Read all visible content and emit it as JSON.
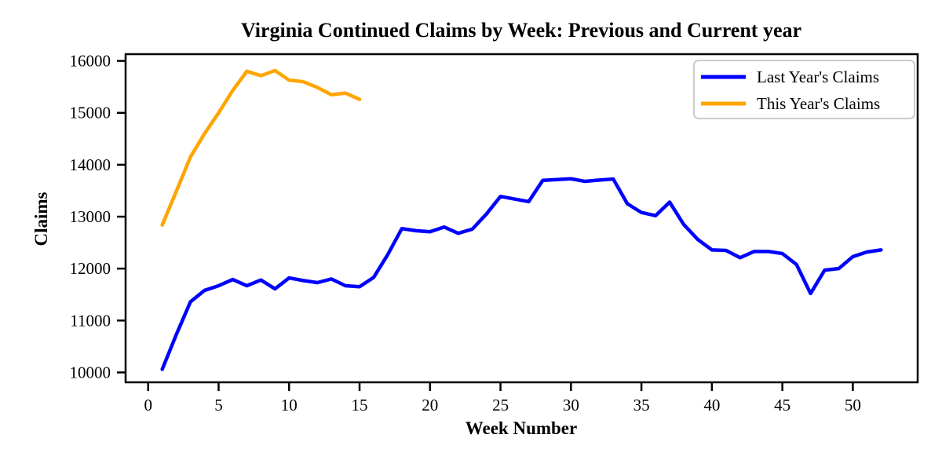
{
  "chart_data": {
    "type": "line",
    "title": "Virginia Continued Claims by Week: Previous and Current year",
    "xlabel": "Week Number",
    "ylabel": "Claims",
    "xlim": [
      -1.6,
      54.6
    ],
    "ylim": [
      9810,
      16130
    ],
    "xticks": [
      0,
      5,
      10,
      15,
      20,
      25,
      30,
      35,
      40,
      45,
      50
    ],
    "yticks": [
      10000,
      11000,
      12000,
      13000,
      14000,
      15000,
      16000
    ],
    "grid": false,
    "legend": {
      "position": "upper right"
    },
    "series": [
      {
        "name": "Last Year's Claims",
        "color": "#0000ff",
        "x": [
          1,
          2,
          3,
          4,
          5,
          6,
          7,
          8,
          9,
          10,
          11,
          12,
          13,
          14,
          15,
          16,
          17,
          18,
          19,
          20,
          21,
          22,
          23,
          24,
          25,
          26,
          27,
          28,
          29,
          30,
          31,
          32,
          33,
          34,
          35,
          36,
          37,
          38,
          39,
          40,
          41,
          42,
          43,
          44,
          45,
          46,
          47,
          48,
          49,
          50,
          51,
          52
        ],
        "values": [
          10060,
          10730,
          11360,
          11580,
          11670,
          11790,
          11670,
          11780,
          11610,
          11820,
          11770,
          11730,
          11800,
          11670,
          11650,
          11830,
          12270,
          12770,
          12730,
          12710,
          12800,
          12680,
          12760,
          13050,
          13390,
          13340,
          13290,
          13700,
          13715,
          13730,
          13680,
          13705,
          13725,
          13250,
          13080,
          13020,
          13280,
          12850,
          12560,
          12360,
          12350,
          12210,
          12330,
          12330,
          12290,
          12080,
          11520,
          11970,
          12000,
          12230,
          12320,
          12360
        ]
      },
      {
        "name": "This Year's Claims",
        "color": "#ffa500",
        "x": [
          1,
          2,
          3,
          4,
          5,
          6,
          7,
          8,
          9,
          10,
          11,
          12,
          13,
          14,
          15
        ],
        "values": [
          12840,
          13490,
          14150,
          14600,
          15000,
          15430,
          15800,
          15715,
          15815,
          15630,
          15600,
          15490,
          15350,
          15380,
          15260
        ]
      }
    ]
  },
  "colors": {
    "background": "#ffffff",
    "axis": "#000000",
    "text": "#000000",
    "legend_border": "#cccccc",
    "legend_fill": "#ffffff"
  }
}
